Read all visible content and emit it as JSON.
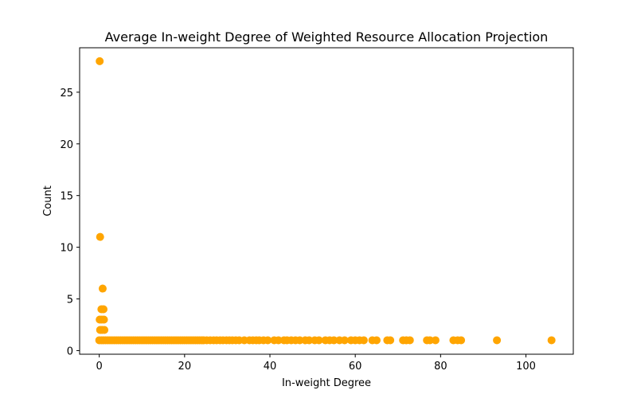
{
  "chart_data": {
    "type": "scatter",
    "title": "Average In-weight Degree of Weighted Resource Allocation Projection",
    "xlabel": "In-weight Degree",
    "ylabel": "Count",
    "xlim": [
      -4.6,
      111.1
    ],
    "ylim": [
      -0.35,
      29.3
    ],
    "xticks": [
      0,
      20,
      40,
      60,
      80,
      100
    ],
    "yticks": [
      0,
      5,
      10,
      15,
      20,
      25
    ],
    "marker_color": "#FFA500",
    "grid": false,
    "points": [
      {
        "x": 0.1,
        "y": 28
      },
      {
        "x": 0.2,
        "y": 11
      },
      {
        "x": 0.8,
        "y": 6
      },
      {
        "x": 0.5,
        "y": 4
      },
      {
        "x": 1.0,
        "y": 4
      },
      {
        "x": 0.1,
        "y": 3
      },
      {
        "x": 0.6,
        "y": 3
      },
      {
        "x": 1.1,
        "y": 3
      },
      {
        "x": 0.2,
        "y": 2
      },
      {
        "x": 0.7,
        "y": 2
      },
      {
        "x": 1.2,
        "y": 2
      },
      {
        "x": 0.0,
        "y": 1
      },
      {
        "x": 0.5,
        "y": 1
      },
      {
        "x": 1.0,
        "y": 1
      },
      {
        "x": 1.5,
        "y": 1
      },
      {
        "x": 2.0,
        "y": 1
      },
      {
        "x": 2.5,
        "y": 1
      },
      {
        "x": 3.0,
        "y": 1
      },
      {
        "x": 3.5,
        "y": 1
      },
      {
        "x": 4.0,
        "y": 1
      },
      {
        "x": 4.5,
        "y": 1
      },
      {
        "x": 5.0,
        "y": 1
      },
      {
        "x": 5.5,
        "y": 1
      },
      {
        "x": 6.0,
        "y": 1
      },
      {
        "x": 6.5,
        "y": 1
      },
      {
        "x": 7.0,
        "y": 1
      },
      {
        "x": 7.5,
        "y": 1
      },
      {
        "x": 8.0,
        "y": 1
      },
      {
        "x": 8.5,
        "y": 1
      },
      {
        "x": 9.0,
        "y": 1
      },
      {
        "x": 9.5,
        "y": 1
      },
      {
        "x": 10.0,
        "y": 1
      },
      {
        "x": 10.5,
        "y": 1
      },
      {
        "x": 11.0,
        "y": 1
      },
      {
        "x": 11.5,
        "y": 1
      },
      {
        "x": 12.0,
        "y": 1
      },
      {
        "x": 12.5,
        "y": 1
      },
      {
        "x": 13.0,
        "y": 1
      },
      {
        "x": 13.5,
        "y": 1
      },
      {
        "x": 14.0,
        "y": 1
      },
      {
        "x": 14.5,
        "y": 1
      },
      {
        "x": 15.0,
        "y": 1
      },
      {
        "x": 15.5,
        "y": 1
      },
      {
        "x": 16.0,
        "y": 1
      },
      {
        "x": 16.5,
        "y": 1
      },
      {
        "x": 17.0,
        "y": 1
      },
      {
        "x": 17.5,
        "y": 1
      },
      {
        "x": 18.0,
        "y": 1
      },
      {
        "x": 18.5,
        "y": 1
      },
      {
        "x": 19.0,
        "y": 1
      },
      {
        "x": 19.5,
        "y": 1
      },
      {
        "x": 20.0,
        "y": 1
      },
      {
        "x": 20.5,
        "y": 1
      },
      {
        "x": 21.0,
        "y": 1
      },
      {
        "x": 21.5,
        "y": 1
      },
      {
        "x": 22.0,
        "y": 1
      },
      {
        "x": 22.5,
        "y": 1
      },
      {
        "x": 23.0,
        "y": 1
      },
      {
        "x": 23.5,
        "y": 1
      },
      {
        "x": 24.0,
        "y": 1
      },
      {
        "x": 24.5,
        "y": 1
      },
      {
        "x": 25.2,
        "y": 1
      },
      {
        "x": 26.0,
        "y": 1
      },
      {
        "x": 26.8,
        "y": 1
      },
      {
        "x": 27.5,
        "y": 1
      },
      {
        "x": 28.3,
        "y": 1
      },
      {
        "x": 29.0,
        "y": 1
      },
      {
        "x": 29.8,
        "y": 1
      },
      {
        "x": 30.5,
        "y": 1
      },
      {
        "x": 31.2,
        "y": 1
      },
      {
        "x": 32.0,
        "y": 1
      },
      {
        "x": 32.8,
        "y": 1
      },
      {
        "x": 34.0,
        "y": 1
      },
      {
        "x": 35.2,
        "y": 1
      },
      {
        "x": 36.0,
        "y": 1
      },
      {
        "x": 36.8,
        "y": 1
      },
      {
        "x": 37.5,
        "y": 1
      },
      {
        "x": 38.5,
        "y": 1
      },
      {
        "x": 39.5,
        "y": 1
      },
      {
        "x": 41.0,
        "y": 1
      },
      {
        "x": 42.0,
        "y": 1
      },
      {
        "x": 43.3,
        "y": 1
      },
      {
        "x": 44.0,
        "y": 1
      },
      {
        "x": 45.0,
        "y": 1
      },
      {
        "x": 46.0,
        "y": 1
      },
      {
        "x": 47.0,
        "y": 1
      },
      {
        "x": 48.3,
        "y": 1
      },
      {
        "x": 49.2,
        "y": 1
      },
      {
        "x": 50.5,
        "y": 1
      },
      {
        "x": 51.5,
        "y": 1
      },
      {
        "x": 53.0,
        "y": 1
      },
      {
        "x": 54.0,
        "y": 1
      },
      {
        "x": 55.0,
        "y": 1
      },
      {
        "x": 56.3,
        "y": 1
      },
      {
        "x": 57.5,
        "y": 1
      },
      {
        "x": 59.0,
        "y": 1
      },
      {
        "x": 60.0,
        "y": 1
      },
      {
        "x": 61.0,
        "y": 1
      },
      {
        "x": 62.0,
        "y": 1
      },
      {
        "x": 64.0,
        "y": 1
      },
      {
        "x": 65.0,
        "y": 1
      },
      {
        "x": 67.5,
        "y": 1
      },
      {
        "x": 68.2,
        "y": 1
      },
      {
        "x": 71.2,
        "y": 1
      },
      {
        "x": 72.0,
        "y": 1
      },
      {
        "x": 72.8,
        "y": 1
      },
      {
        "x": 76.8,
        "y": 1
      },
      {
        "x": 77.5,
        "y": 1
      },
      {
        "x": 78.8,
        "y": 1
      },
      {
        "x": 83.0,
        "y": 1
      },
      {
        "x": 84.0,
        "y": 1
      },
      {
        "x": 84.8,
        "y": 1
      },
      {
        "x": 93.2,
        "y": 1
      },
      {
        "x": 106.0,
        "y": 1
      }
    ]
  }
}
